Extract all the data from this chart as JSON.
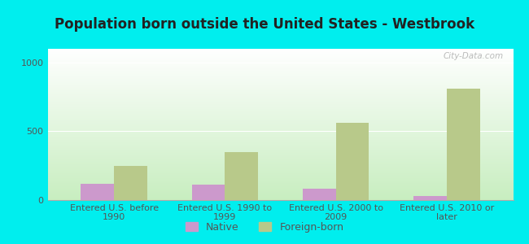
{
  "title": "Population born outside the United States - Westbrook",
  "categories": [
    "Entered U.S. before\n1990",
    "Entered U.S. 1990 to\n1999",
    "Entered U.S. 2000 to\n2009",
    "Entered U.S. 2010 or\nlater"
  ],
  "native_values": [
    120,
    110,
    80,
    30
  ],
  "foreign_values": [
    250,
    350,
    560,
    810
  ],
  "native_color": "#cc99cc",
  "foreign_color": "#b8c98a",
  "background_outer": "#00eeee",
  "ylim": [
    0,
    1100
  ],
  "yticks": [
    0,
    500,
    1000
  ],
  "bar_width": 0.3,
  "title_fontsize": 12,
  "tick_fontsize": 8,
  "legend_fontsize": 9,
  "watermark": "City-Data.com",
  "label_color": "#555555",
  "title_color": "#222222",
  "gradient_top": "#ffffff",
  "gradient_bottom": "#c8eec0"
}
